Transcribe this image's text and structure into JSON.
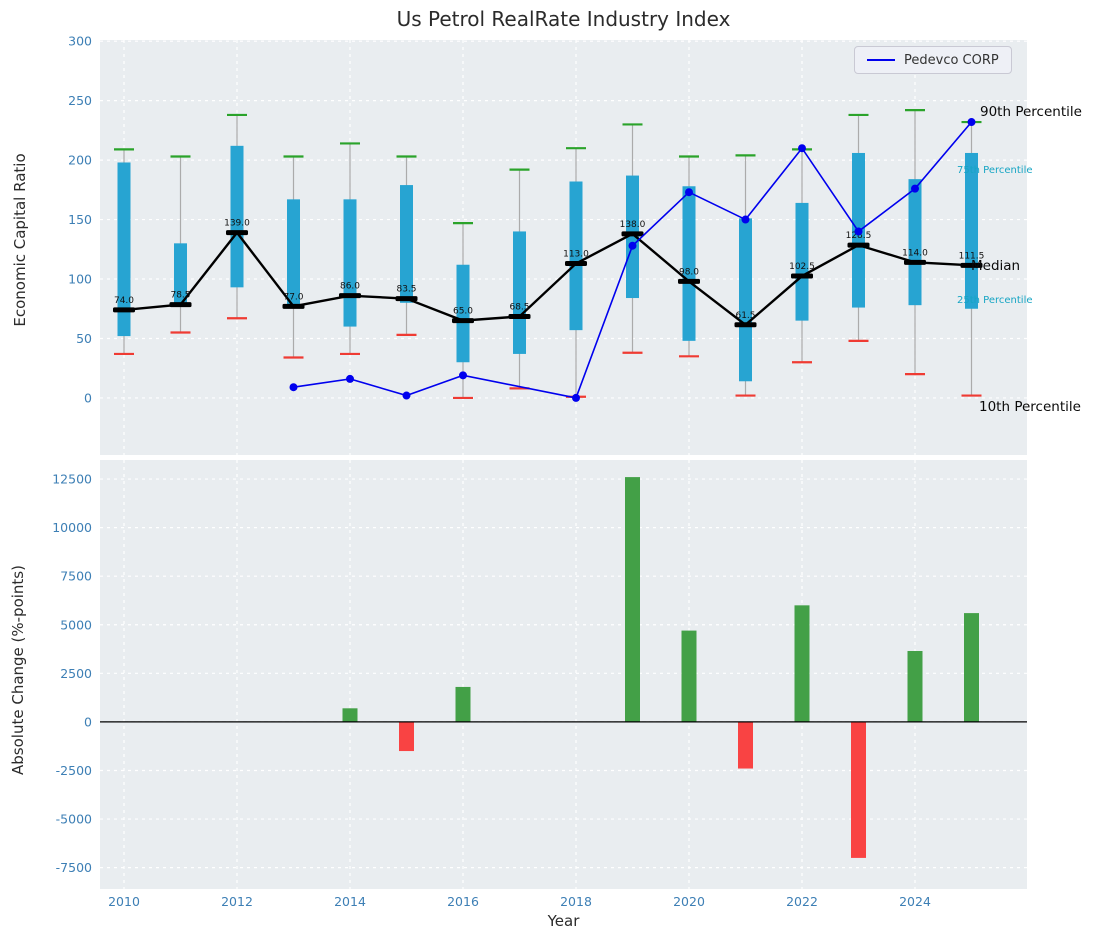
{
  "title": "Us Petrol RealRate Industry Index",
  "colors": {
    "box": "#27a4d2",
    "cap_high": "#2aa32a",
    "cap_low": "#ef3b33",
    "whisker": "#ababab",
    "median_line": "#000000",
    "pedevco_line": "#0000ee",
    "bar_positive": "#43a047",
    "bar_negative": "#f94343",
    "plot_bg": "#e9edf0",
    "grid": "#ffffff",
    "tick_label": "#3d7fb5",
    "percentile_annotation": "#17a5c4"
  },
  "chart_data": [
    {
      "type": "boxplot+line",
      "title": "Us Petrol RealRate Industry Index",
      "ylabel": "Economic Capital Ratio",
      "yticks": [
        0,
        50,
        100,
        150,
        200,
        250,
        300
      ],
      "ylim": [
        -48,
        301
      ],
      "grid": true,
      "years": [
        2010,
        2011,
        2012,
        2013,
        2014,
        2015,
        2016,
        2017,
        2018,
        2019,
        2020,
        2021,
        2022,
        2023,
        2024,
        2025
      ],
      "median": [
        74.0,
        78.5,
        139.0,
        77.0,
        86.0,
        83.5,
        65.0,
        68.5,
        113.0,
        138.0,
        98.0,
        61.5,
        102.5,
        128.5,
        114.0,
        111.5
      ],
      "q1": [
        52,
        78,
        93,
        76,
        60,
        80,
        30,
        37,
        57,
        84,
        48,
        14,
        65,
        76,
        78,
        75
      ],
      "q3": [
        198,
        130,
        212,
        167,
        167,
        179,
        112,
        140,
        182,
        187,
        178,
        151,
        164,
        206,
        184,
        206
      ],
      "p10": [
        37,
        55,
        67,
        34,
        37,
        53,
        0,
        8,
        1,
        38,
        35,
        2,
        30,
        48,
        20,
        2
      ],
      "p90": [
        209,
        203,
        238,
        203,
        214,
        203,
        147,
        192,
        210,
        230,
        203,
        204,
        209,
        238,
        242,
        232
      ],
      "series": [
        {
          "name": "Pedevco CORP",
          "values": [
            null,
            null,
            null,
            9,
            16,
            2,
            19,
            null,
            0,
            128,
            173,
            150,
            210,
            140,
            176,
            232
          ]
        }
      ],
      "annotations": {
        "p90": "90th Percentile",
        "p75": "75th Percentile",
        "median": "Median",
        "p25": "25th Percentile",
        "p10": "10th Percentile"
      },
      "legend_position": "upper right"
    },
    {
      "type": "bar",
      "ylabel": "Absolute Change (%-points)",
      "xlabel": "Year",
      "yticks": [
        -7500,
        -5000,
        -2500,
        0,
        2500,
        5000,
        7500,
        10000,
        12500
      ],
      "ylim": [
        -8600,
        13480
      ],
      "xticks": [
        2010,
        2012,
        2014,
        2016,
        2018,
        2020,
        2022,
        2024
      ],
      "grid": true,
      "years": [
        2010,
        2011,
        2012,
        2013,
        2014,
        2015,
        2016,
        2017,
        2018,
        2019,
        2020,
        2021,
        2022,
        2023,
        2024,
        2025
      ],
      "values": [
        null,
        null,
        null,
        null,
        700,
        -1500,
        1800,
        null,
        null,
        12600,
        4700,
        -2400,
        6000,
        -7000,
        3650,
        5600
      ]
    }
  ]
}
